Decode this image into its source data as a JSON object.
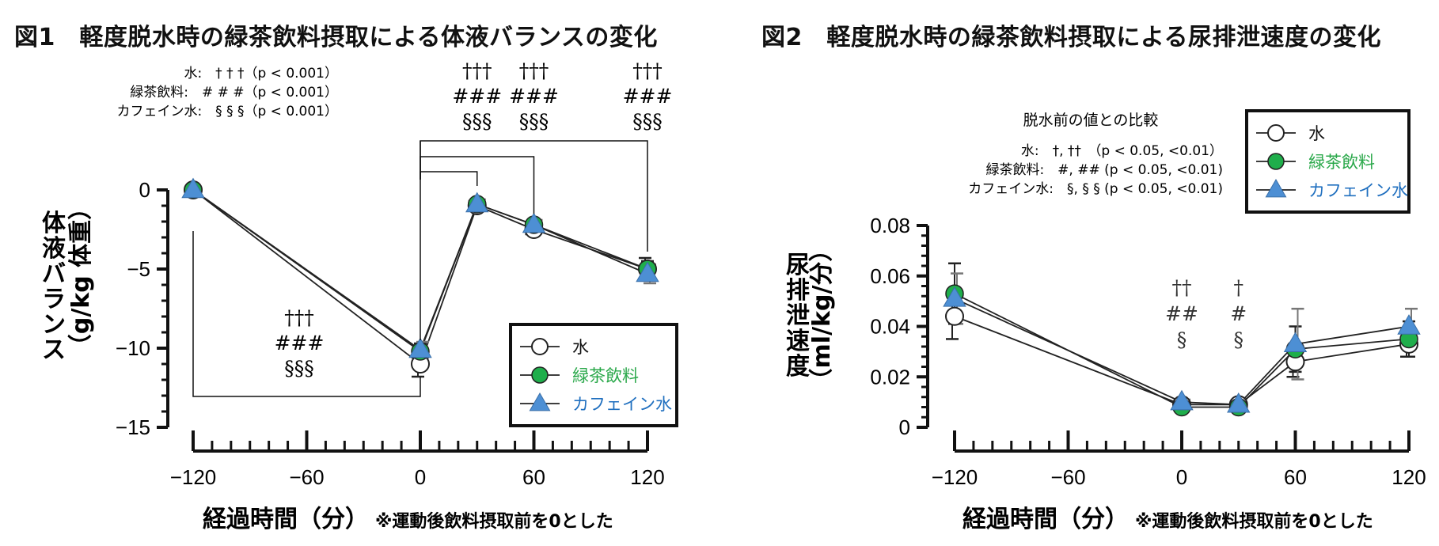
{
  "figures": {
    "fig1": {
      "title": "図1　軽度脱水時の緑茶飲料摂取による体液バランスの変化",
      "ylabel_main": "体液バランス",
      "ylabel_unit": "（g/kg 体重）",
      "xlabel": "経過時間（分）",
      "xnote": "※運動後飲料摂取前を0とした",
      "stats": [
        "水:　† † †（p < 0.001）",
        "緑茶飲料:　# # #（p < 0.001）",
        "カフェイン水:　§ § §（p < 0.001）"
      ],
      "legend": [
        "水",
        "緑茶飲料",
        "カフェイン水"
      ],
      "sig_marks": {
        "low": [
          "†††",
          "###",
          "§§§"
        ],
        "t30": [
          "†††",
          "###",
          "§§§"
        ],
        "t60": [
          "†††",
          "###",
          "§§§"
        ],
        "t120": [
          "†††",
          "###",
          "§§§"
        ]
      }
    },
    "fig2": {
      "title": "図2　軽度脱水時の緑茶飲料摂取による尿排泄速度の変化",
      "ylabel_main": "尿排泄速度",
      "ylabel_unit": "（ml/kg/分）",
      "xlabel": "経過時間（分）",
      "xnote": "※運動後飲料摂取前を0とした",
      "stats_title": "脱水前の値との比較",
      "stats": [
        "水:　†, ††　（p < 0.05, <0.01）",
        "緑茶飲料:　#, ## (p < 0.05, <0.01)",
        "カフェイン水:　§, § § (p < 0.05, <0.01)"
      ],
      "legend": [
        "水",
        "緑茶飲料",
        "カフェイン水"
      ],
      "sig_marks": {
        "t0": [
          "††",
          "##",
          "§"
        ],
        "t30": [
          "†",
          "#",
          "§"
        ]
      }
    }
  },
  "colors": {
    "green": "#1fae4b",
    "blue": "#4d8fd4",
    "green_text": "#2aa84a",
    "blue_text": "#1f6fbf"
  },
  "chart_data": [
    {
      "type": "line",
      "title": "図1　軽度脱水時の緑茶飲料摂取による体液バランスの変化",
      "xlabel": "経過時間（分）",
      "ylabel": "体液バランス（g/kg 体重）",
      "x": [
        -120,
        0,
        30,
        60,
        120
      ],
      "xticks": [
        -120,
        -60,
        0,
        60,
        120
      ],
      "xlim": [
        -120,
        120
      ],
      "ylim": [
        -15,
        0
      ],
      "yticks": [
        0,
        -5,
        -10,
        -15
      ],
      "legend_position": "bottom-right",
      "grid": false,
      "series": [
        {
          "name": "水",
          "marker": "circle-open",
          "values": [
            0,
            -11.0,
            -1.0,
            -2.5,
            -5.0
          ],
          "error": [
            0,
            0.8,
            0.3,
            0.3,
            0.7
          ]
        },
        {
          "name": "緑茶飲料",
          "marker": "circle-green",
          "values": [
            0,
            -10.2,
            -0.9,
            -2.2,
            -5.0
          ],
          "error": [
            0,
            0.5,
            0.3,
            0.3,
            0.5
          ]
        },
        {
          "name": "カフェイン水",
          "marker": "triangle-blue",
          "values": [
            0,
            -10.1,
            -0.9,
            -2.2,
            -5.3
          ],
          "error": [
            0,
            0.5,
            0.3,
            0.3,
            0.6
          ]
        }
      ]
    },
    {
      "type": "line",
      "title": "図2　軽度脱水時の緑茶飲料摂取による尿排泄速度の変化",
      "xlabel": "経過時間（分）",
      "ylabel": "尿排泄速度（ml/kg/分）",
      "x": [
        -120,
        0,
        30,
        60,
        120
      ],
      "xticks": [
        -120,
        -60,
        0,
        60,
        120
      ],
      "xlim": [
        -120,
        120
      ],
      "ylim": [
        0,
        0.08
      ],
      "yticks": [
        0,
        0.02,
        0.04,
        0.06,
        0.08
      ],
      "legend_position": "top-right",
      "grid": false,
      "series": [
        {
          "name": "水",
          "marker": "circle-open",
          "values": [
            0.044,
            0.009,
            0.009,
            0.026,
            0.033
          ],
          "error": [
            0.009,
            0.001,
            0.001,
            0.006,
            0.005
          ]
        },
        {
          "name": "緑茶飲料",
          "marker": "circle-green",
          "values": [
            0.053,
            0.008,
            0.008,
            0.031,
            0.035
          ],
          "error": [
            0.012,
            0.001,
            0.001,
            0.009,
            0.007
          ]
        },
        {
          "name": "カフェイン水",
          "marker": "triangle-blue",
          "values": [
            0.051,
            0.01,
            0.009,
            0.033,
            0.04
          ],
          "error": [
            0.01,
            0.001,
            0.001,
            0.014,
            0.007
          ]
        }
      ]
    }
  ]
}
